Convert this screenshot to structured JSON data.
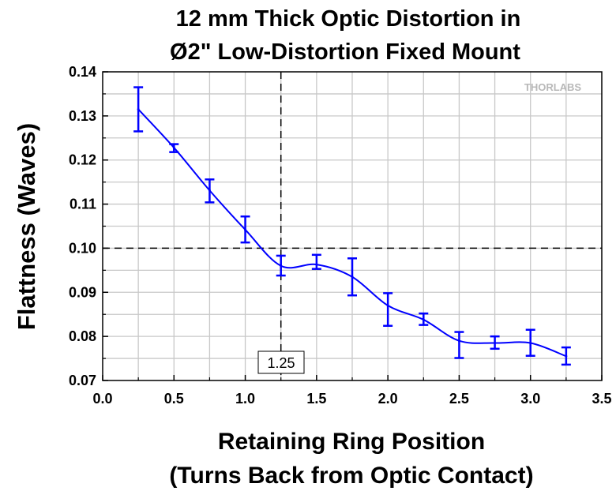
{
  "watermark": "THORLABS",
  "chart_data": {
    "type": "line",
    "title": [
      "12 mm Thick Optic Distortion in",
      "Ø2\" Low-Distortion Fixed Mount"
    ],
    "xlabel": [
      "Retaining Ring Position",
      "(Turns Back from Optic Contact)"
    ],
    "ylabel": "Flattness (Waves)",
    "xlim": [
      0.0,
      3.5
    ],
    "ylim": [
      0.07,
      0.14
    ],
    "xticks": [
      "0.0",
      "0.5",
      "1.0",
      "1.5",
      "2.0",
      "2.5",
      "3.0",
      "3.5"
    ],
    "yticks": [
      "0.07",
      "0.08",
      "0.09",
      "0.10",
      "0.11",
      "0.12",
      "0.13",
      "0.14"
    ],
    "grid": true,
    "x_minor_step": 0.25,
    "y_minor_step": 0.005,
    "series": [
      {
        "color": "#0000ff",
        "x": [
          0.25,
          0.5,
          0.75,
          1.0,
          1.25,
          1.5,
          1.75,
          2.0,
          2.25,
          2.5,
          2.75,
          3.0,
          3.25
        ],
        "y": [
          0.1315,
          0.1228,
          0.1131,
          0.1042,
          0.096,
          0.0963,
          0.0935,
          0.087,
          0.0838,
          0.079,
          0.0785,
          0.0785,
          0.0755
        ],
        "err_low": [
          0.1265,
          0.1218,
          0.1104,
          0.1013,
          0.0938,
          0.0953,
          0.0893,
          0.0824,
          0.0826,
          0.0751,
          0.0772,
          0.0756,
          0.0736
        ],
        "err_high": [
          0.1365,
          0.1236,
          0.1156,
          0.1072,
          0.0983,
          0.0985,
          0.0977,
          0.0898,
          0.0852,
          0.081,
          0.08,
          0.0815,
          0.0775
        ]
      }
    ],
    "reference_lines": {
      "x": 1.25,
      "y": 0.1
    },
    "annotation": "1.25"
  }
}
